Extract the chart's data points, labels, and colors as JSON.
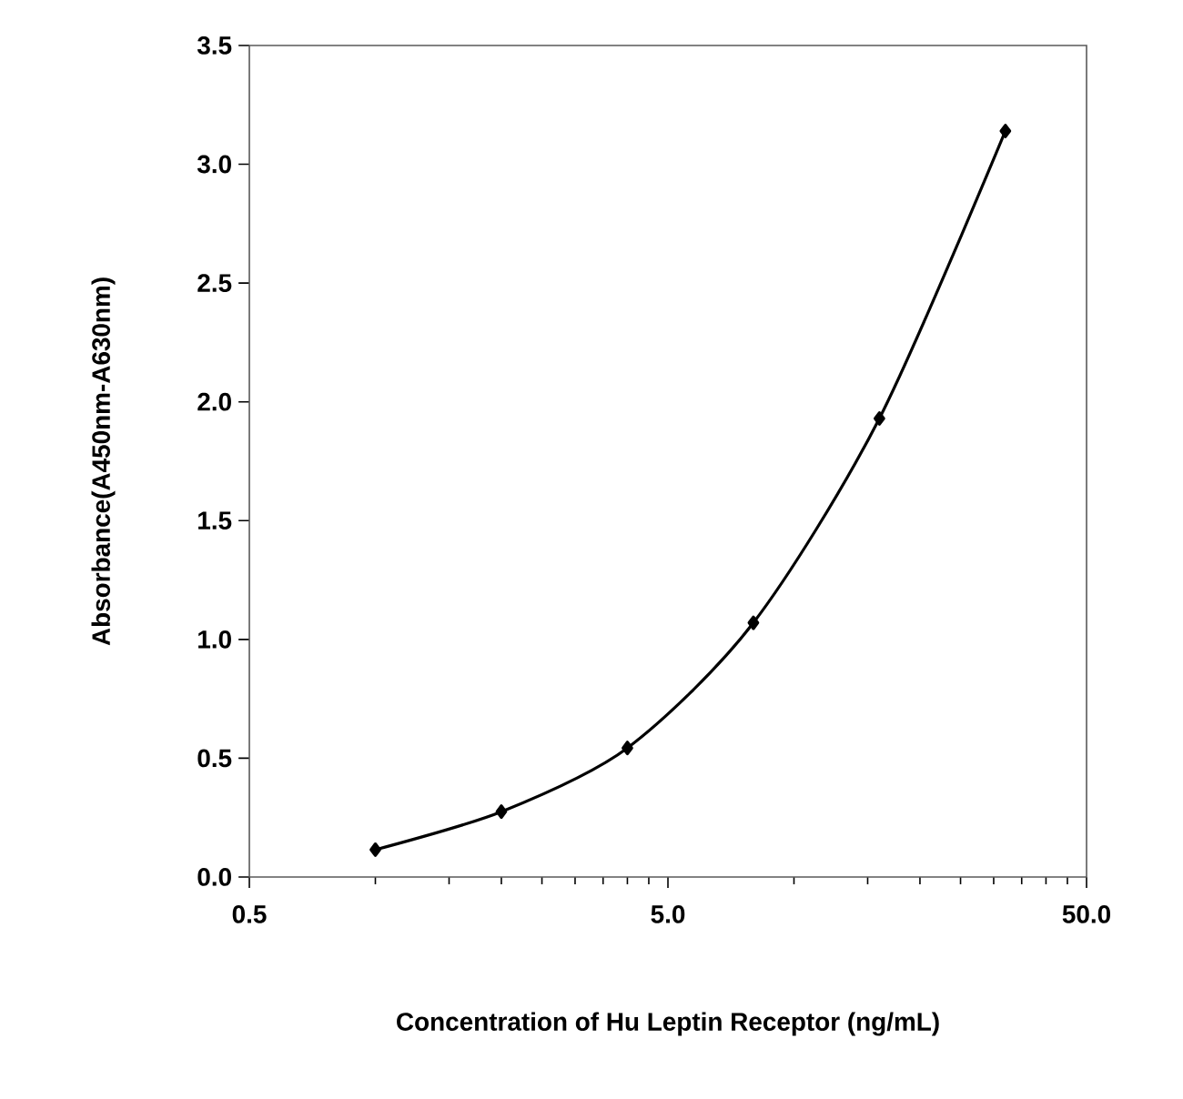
{
  "chart_data": {
    "type": "line",
    "xlabel": "Concentration of Hu Leptin Receptor (ng/mL)",
    "ylabel": "Absorbance(A450nm-A630nm)",
    "log": "x",
    "xlim": [
      0.5,
      50
    ],
    "xticks": [
      0.5,
      {
        "value": 5,
        "label": "5.0"
      },
      {
        "value": 50,
        "label": "50.0"
      }
    ],
    "ylim": [
      0,
      3.5
    ],
    "yticks": [
      {
        "value": 0,
        "label": "0.0"
      },
      0.5,
      {
        "value": 1,
        "label": "1.0"
      },
      1.5,
      {
        "value": 2,
        "label": "2.0"
      },
      2.5,
      {
        "value": 3,
        "label": "3.0"
      },
      3.5
    ],
    "marker": "diamond",
    "line_style": "solid",
    "grid": false,
    "series": [
      {
        "color": "#000000",
        "x": [
          1,
          2,
          4,
          8,
          16,
          32
        ],
        "values": [
          0.115,
          0.275,
          0.543,
          1.07,
          1.93,
          3.14
        ]
      }
    ]
  }
}
